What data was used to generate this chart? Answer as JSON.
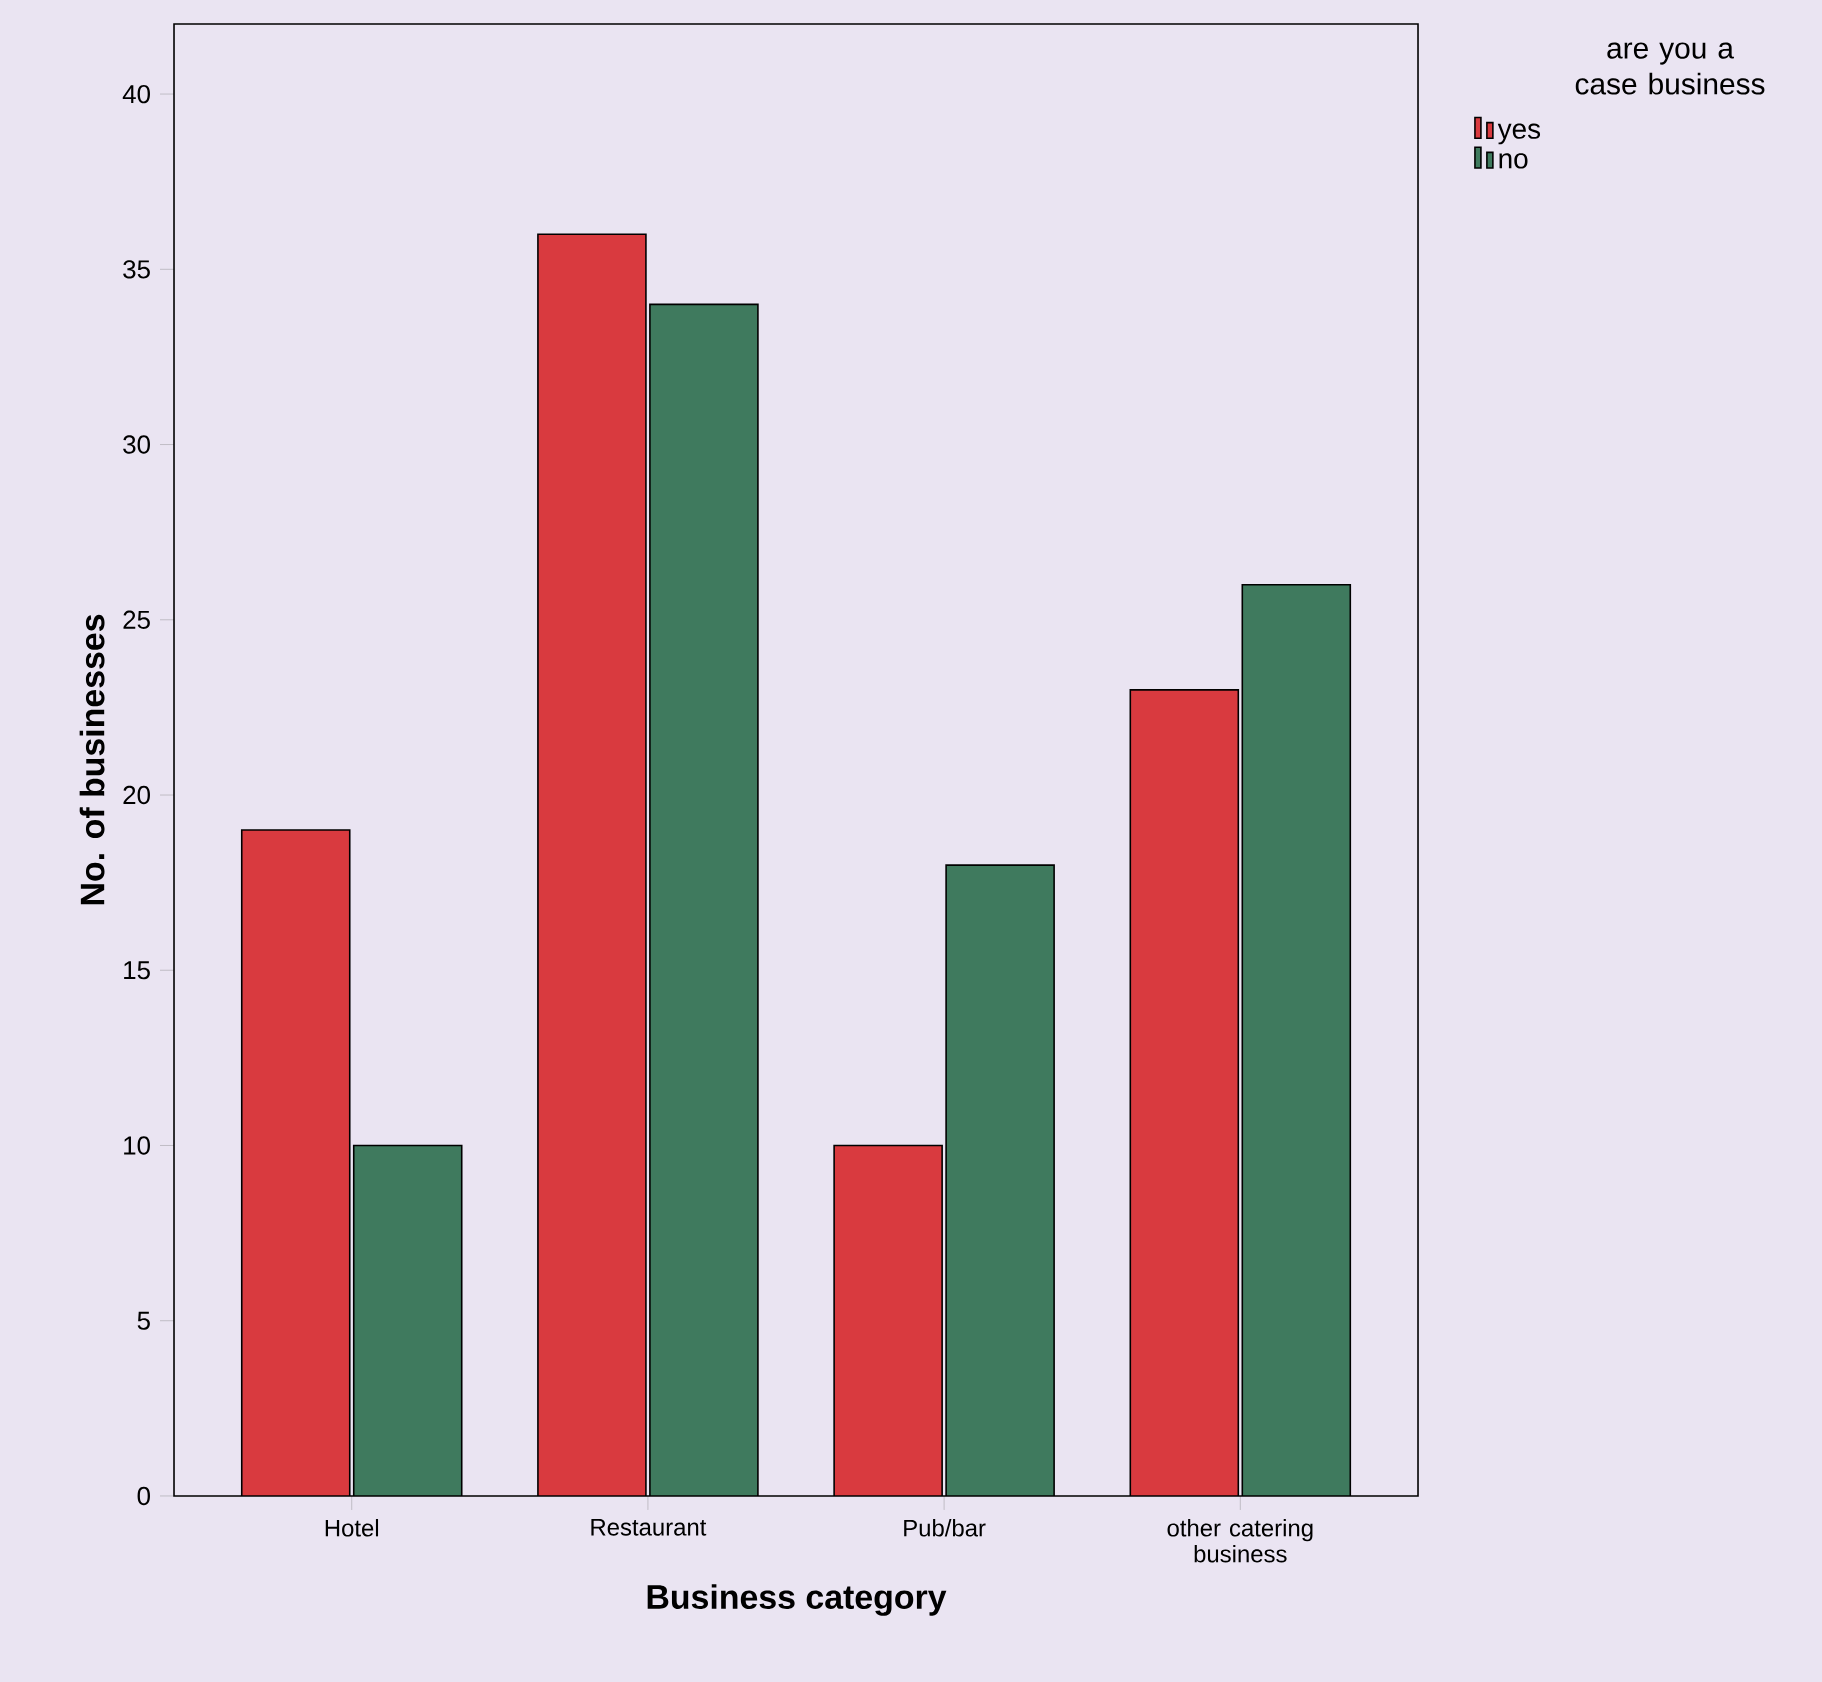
{
  "chart_data": {
    "type": "bar",
    "xlabel": "Business category",
    "ylabel": "No. of businesses",
    "legend_title": "are you a case business",
    "categories": [
      "Hotel",
      "Restaurant",
      "Pub/bar",
      "other catering business"
    ],
    "series": [
      {
        "name": "yes",
        "color": "#d93a3f",
        "values": [
          19,
          36,
          10,
          23
        ]
      },
      {
        "name": "no",
        "color": "#3f7a5e",
        "values": [
          10,
          34,
          18,
          26
        ]
      }
    ],
    "ylim": [
      0,
      42
    ],
    "yticks": [
      0,
      5,
      10,
      15,
      20,
      25,
      30,
      35,
      40
    ],
    "grid": false,
    "legend": "top right"
  }
}
